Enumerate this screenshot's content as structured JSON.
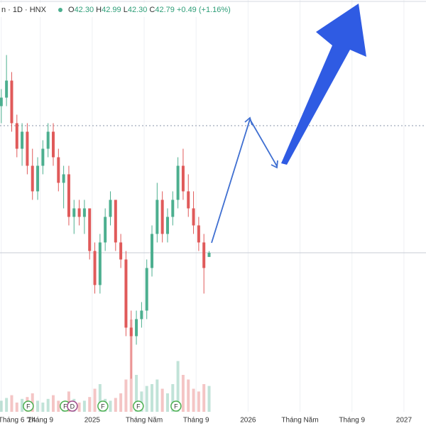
{
  "header": {
    "symbol": "n · 1D · HNX",
    "ohlc": [
      {
        "key": "O",
        "value": "42.30"
      },
      {
        "key": "H",
        "value": "42.99"
      },
      {
        "key": "L",
        "value": "42.30"
      },
      {
        "key": "C",
        "value": "42.79"
      }
    ],
    "change": "+0.49 (+1.16%)"
  },
  "chart_data": {
    "type": "candlestick",
    "x": [
      5.0,
      5.4,
      5.8,
      6.2,
      6.6,
      7.0,
      7.4,
      7.8,
      8.2,
      8.6,
      9.0,
      9.4,
      9.8,
      10.2,
      10.6,
      11.0,
      11.4,
      11.8,
      12.2,
      12.6,
      13.0,
      13.4,
      13.8,
      14.2,
      14.6,
      15.0,
      15.4,
      15.8,
      16.2,
      16.6,
      17.0,
      17.4,
      17.8,
      18.2,
      18.6,
      19.0,
      19.4,
      19.8,
      20.2,
      20.6,
      21.0
    ],
    "open": [
      60,
      61,
      63,
      58,
      55,
      57,
      53,
      50,
      53,
      55,
      57,
      54,
      51,
      52,
      47,
      48,
      47,
      48,
      43,
      39,
      44,
      47,
      49,
      44,
      42,
      34,
      33,
      35,
      36,
      41,
      45,
      49,
      45,
      47,
      49,
      53,
      50,
      48,
      46,
      44,
      42.3
    ],
    "high": [
      62,
      66,
      64,
      59,
      58,
      58,
      55,
      54,
      56,
      58,
      58,
      55,
      53,
      53,
      49,
      49,
      49,
      48,
      44,
      45,
      48,
      50,
      49,
      45,
      43,
      36,
      36,
      37,
      42,
      46,
      51,
      50,
      48,
      50,
      54,
      55,
      52,
      50,
      47,
      45,
      42.99
    ],
    "low": [
      58,
      60,
      57,
      54,
      53,
      52,
      49,
      49,
      52,
      54,
      53,
      50,
      48,
      46,
      45,
      46,
      45,
      42,
      38,
      38,
      43,
      46,
      43,
      41,
      33,
      28,
      32,
      34,
      35,
      40,
      44,
      44,
      44,
      46,
      48,
      49,
      47,
      45,
      43,
      38,
      42.3
    ],
    "close": [
      61,
      63,
      58,
      55,
      57,
      53,
      50,
      53,
      55,
      57,
      54,
      51,
      52,
      47,
      48,
      47,
      48,
      43,
      39,
      44,
      47,
      49,
      44,
      42,
      34,
      33,
      35,
      36,
      41,
      45,
      49,
      45,
      47,
      49,
      53,
      50,
      48,
      46,
      44,
      41,
      42.79
    ],
    "volume": [
      12,
      15,
      18,
      10,
      14,
      16,
      20,
      12,
      10,
      14,
      18,
      12,
      10,
      22,
      14,
      10,
      12,
      16,
      25,
      30,
      14,
      12,
      15,
      20,
      35,
      100,
      40,
      22,
      28,
      30,
      35,
      25,
      20,
      30,
      55,
      40,
      35,
      25,
      22,
      30,
      28
    ],
    "up_color": "#4caf8f",
    "down_color": "#e05a5a",
    "xlim": [
      4.9,
      37.7
    ],
    "ylim": [
      24.12,
      72.46
    ],
    "xticks": [
      {
        "value": 5,
        "label": "Tháng 6 '24"
      },
      {
        "value": 8,
        "label": "Tháng 9"
      },
      {
        "value": 12,
        "label": "2025"
      },
      {
        "value": 16,
        "label": "Tháng Năm"
      },
      {
        "value": 20,
        "label": "Tháng 9"
      },
      {
        "value": 24,
        "label": "2026"
      },
      {
        "value": 28,
        "label": "Tháng Năm"
      },
      {
        "value": 32,
        "label": "Tháng 9"
      },
      {
        "value": 36,
        "label": "2027"
      }
    ],
    "grid": true,
    "events": [
      {
        "x": 7.08,
        "label": "F"
      },
      {
        "x": 9.92,
        "label": "F"
      },
      {
        "x": 10.47,
        "label": "D"
      },
      {
        "x": 12.82,
        "label": "F"
      },
      {
        "x": 15.55,
        "label": "F"
      },
      {
        "x": 18.45,
        "label": "F"
      }
    ]
  }
}
